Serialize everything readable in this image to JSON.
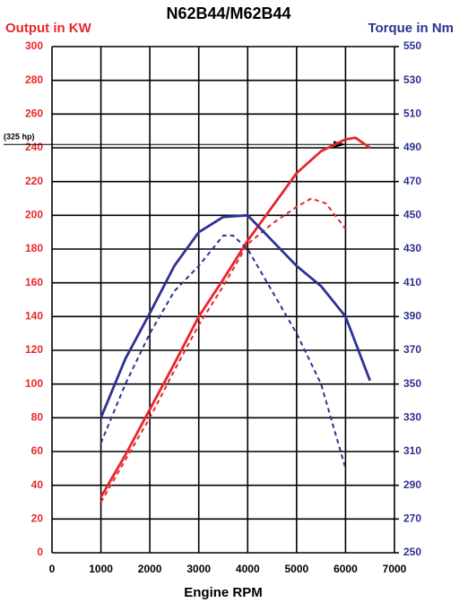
{
  "chart_data": {
    "type": "line",
    "title": "N62B44/M62B44",
    "ylabel": "Output in KW",
    "y2label": "Torque in Nm",
    "xlabel": "Engine RPM",
    "xlim": [
      0,
      7000
    ],
    "xticks": [
      0,
      1000,
      2000,
      3000,
      4000,
      5000,
      6000,
      7000
    ],
    "ylim": [
      0,
      300
    ],
    "yticks": [
      0,
      20,
      40,
      60,
      80,
      100,
      120,
      140,
      160,
      180,
      200,
      220,
      240,
      260,
      280,
      300
    ],
    "y2lim": [
      250,
      550
    ],
    "y2ticks": [
      250,
      270,
      290,
      310,
      330,
      350,
      370,
      390,
      410,
      430,
      450,
      470,
      490,
      510,
      530,
      550
    ],
    "grid": true,
    "ycolor": "#e8262b",
    "y2color": "#2e3192",
    "annotation": {
      "label": "(325 hp)",
      "y": 242
    },
    "series": [
      {
        "color": "#e8262b",
        "dash": false,
        "x": [
          1000,
          1500,
          2000,
          2500,
          3000,
          3500,
          4000,
          4500,
          5000,
          5500,
          6000,
          6200,
          6500
        ],
        "values": [
          33,
          58,
          85,
          112,
          140,
          162,
          185,
          205,
          225,
          238,
          245,
          246,
          240
        ]
      },
      {
        "color": "#e8262b",
        "dash": true,
        "x": [
          1000,
          1500,
          2000,
          2500,
          3000,
          3500,
          4000,
          4500,
          5000,
          5300,
          5600,
          6000
        ],
        "values": [
          30,
          55,
          80,
          108,
          135,
          158,
          183,
          195,
          205,
          210,
          207,
          192
        ]
      },
      {
        "color": "#2e3192",
        "dash": false,
        "axis": "y2",
        "x": [
          1000,
          1500,
          2000,
          2500,
          3000,
          3500,
          4000,
          4500,
          5000,
          5500,
          6000,
          6500
        ],
        "values": [
          330,
          365,
          392,
          420,
          440,
          449,
          450,
          435,
          420,
          408,
          390,
          352
        ]
      },
      {
        "color": "#2e3192",
        "dash": true,
        "axis": "y2",
        "x": [
          1000,
          1500,
          2000,
          2500,
          3000,
          3500,
          3700,
          4000,
          4500,
          5000,
          5500,
          6000
        ],
        "values": [
          315,
          350,
          380,
          405,
          420,
          438,
          438,
          430,
          405,
          380,
          350,
          300
        ]
      }
    ]
  }
}
